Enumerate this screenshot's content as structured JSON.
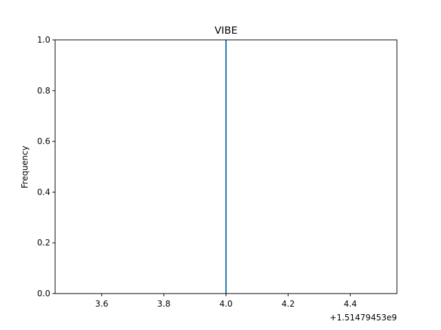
{
  "chart_data": {
    "type": "bar",
    "title": "VIBE",
    "xlabel": "",
    "ylabel": "Frequency",
    "x_offset_label": "+1.51479453e9",
    "xlim": [
      3.45,
      4.55
    ],
    "ylim": [
      0,
      1.0
    ],
    "x_ticks": [
      3.6,
      3.8,
      4.0,
      4.2,
      4.4
    ],
    "x_tick_labels": [
      "3.6",
      "3.8",
      "4.0",
      "4.2",
      "4.4"
    ],
    "y_ticks": [
      0.0,
      0.2,
      0.4,
      0.6,
      0.8,
      1.0
    ],
    "y_tick_labels": [
      "0.0",
      "0.2",
      "0.4",
      "0.6",
      "0.8",
      "1.0"
    ],
    "bins": [
      {
        "x": 4.0,
        "count": 1.0
      }
    ],
    "grid": false,
    "legend": "none",
    "bar_color": "#1f77b4"
  }
}
